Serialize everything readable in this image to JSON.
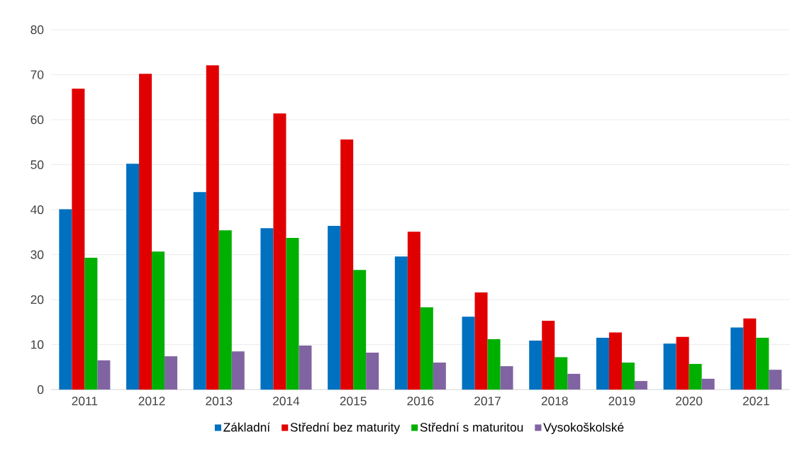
{
  "chart_data": {
    "type": "bar",
    "categories": [
      "2011",
      "2012",
      "2013",
      "2014",
      "2015",
      "2016",
      "2017",
      "2018",
      "2019",
      "2020",
      "2021"
    ],
    "series": [
      {
        "name": "Základní",
        "color": "#0070c0",
        "values": [
          40.1,
          50.2,
          43.9,
          35.9,
          36.4,
          29.6,
          16.2,
          10.9,
          11.5,
          10.2,
          13.8
        ]
      },
      {
        "name": "Střední bez maturity",
        "color": "#e00000",
        "values": [
          66.9,
          70.2,
          72.1,
          61.4,
          55.6,
          35.1,
          21.6,
          15.3,
          12.7,
          11.7,
          15.8
        ]
      },
      {
        "name": "Střední s maturitou",
        "color": "#00b000",
        "values": [
          29.3,
          30.7,
          35.4,
          33.7,
          26.6,
          18.3,
          11.2,
          7.2,
          6.0,
          5.7,
          11.5
        ]
      },
      {
        "name": "Vysokoškolské",
        "color": "#8064a2",
        "values": [
          6.5,
          7.4,
          8.5,
          9.8,
          8.2,
          6.0,
          5.2,
          3.5,
          1.9,
          2.4,
          4.4
        ]
      }
    ],
    "ylim": [
      0,
      80
    ],
    "yticks": [
      0,
      10,
      20,
      30,
      40,
      50,
      60,
      70,
      80
    ],
    "grid": "y",
    "legend": "bottom"
  }
}
